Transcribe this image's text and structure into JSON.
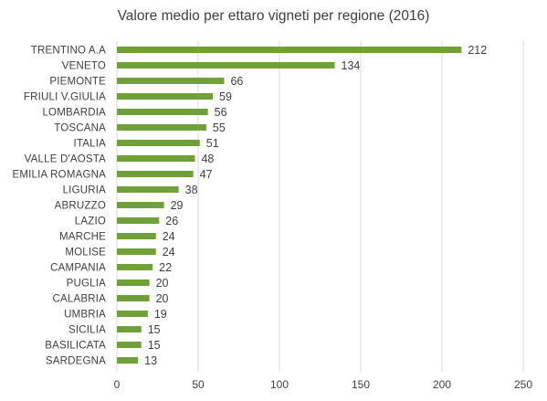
{
  "chart_data": {
    "type": "bar",
    "orientation": "horizontal",
    "title": "Valore medio per ettaro vigneti per regione (2016)",
    "categories": [
      "TRENTINO A.A",
      "VENETO",
      "PIEMONTE",
      "FRIULI V.GIULIA",
      "LOMBARDIA",
      "TOSCANA",
      "ITALIA",
      "VALLE D'AOSTA",
      "EMILIA ROMAGNA",
      "LIGURIA",
      "ABRUZZO",
      "LAZIO",
      "MARCHE",
      "MOLISE",
      "CAMPANIA",
      "PUGLIA",
      "CALABRIA",
      "UMBRIA",
      "SICILIA",
      "BASILICATA",
      "SARDEGNA"
    ],
    "values": [
      212,
      134,
      66,
      59,
      56,
      55,
      51,
      48,
      47,
      38,
      29,
      26,
      24,
      24,
      22,
      20,
      20,
      19,
      15,
      15,
      13
    ],
    "xticks": [
      "0",
      "50",
      "100",
      "150",
      "200",
      "250"
    ],
    "xlim": [
      0,
      250
    ],
    "grid": true,
    "bar_color": "#70a03a",
    "data_labels": true
  }
}
